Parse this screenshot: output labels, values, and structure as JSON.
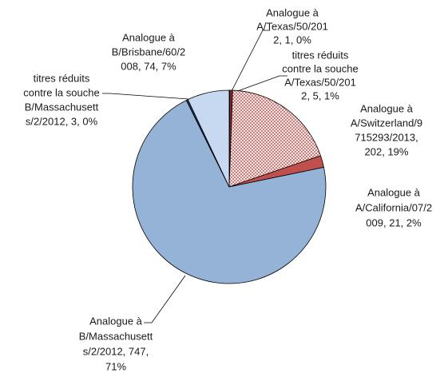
{
  "chart_data": {
    "type": "pie",
    "values": [
      1,
      5,
      202,
      21,
      747,
      3,
      74
    ],
    "colors": [
      "#632523",
      "#7f2a28",
      "#c0504d",
      "#c0504d",
      "#95b3d7",
      "#1f3864",
      "#c6d9f1"
    ],
    "hatched": [
      false,
      false,
      true,
      false,
      false,
      false,
      false
    ],
    "data_labels": [
      [
        "Analogue à",
        "A/Texas/50/201",
        "2, 1, 0%"
      ],
      [
        "titres réduits",
        "contre la souche",
        "A/Texas/50/201",
        "2, 5, 1%"
      ],
      [
        "Analogue à",
        "A/Switzerland/9",
        "715293/2013,",
        "202, 19%"
      ],
      [
        "Analogue à",
        "A/California/07/2",
        "009, 21, 2%"
      ],
      [
        "Analogue à",
        "B/Massachusett",
        "s/2/2012, 747,",
        "71%"
      ],
      [
        "titres réduits",
        "contre la souche",
        "B/Massachusett",
        "s/2/2012, 3, 0%"
      ],
      [
        "Analogue à",
        "B/Brisbane/60/2",
        "008, 74, 7%"
      ]
    ]
  }
}
